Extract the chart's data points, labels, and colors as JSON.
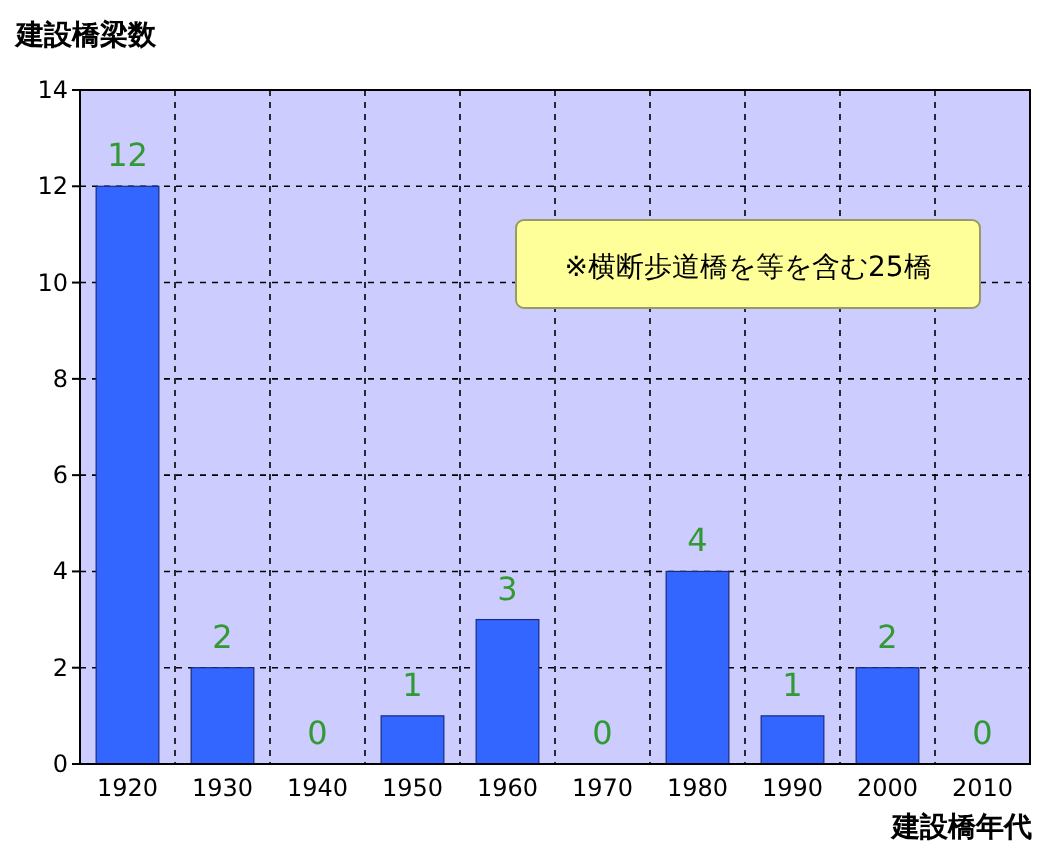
{
  "chart_data": {
    "type": "bar",
    "ylabel": "建設橋梁数",
    "xlabel": "建設橋年代",
    "categories": [
      "1920",
      "1930",
      "1940",
      "1950",
      "1960",
      "1970",
      "1980",
      "1990",
      "2000",
      "2010"
    ],
    "values": [
      12,
      2,
      0,
      1,
      3,
      0,
      4,
      1,
      2,
      0
    ],
    "color": "#3366ff",
    "ylim": [
      0,
      14
    ],
    "yticks": [
      0,
      2,
      4,
      6,
      8,
      10,
      12,
      14
    ],
    "grid": true,
    "data_labels": true,
    "annotations": [
      "※横断歩道橋を等を含む25橋"
    ]
  }
}
